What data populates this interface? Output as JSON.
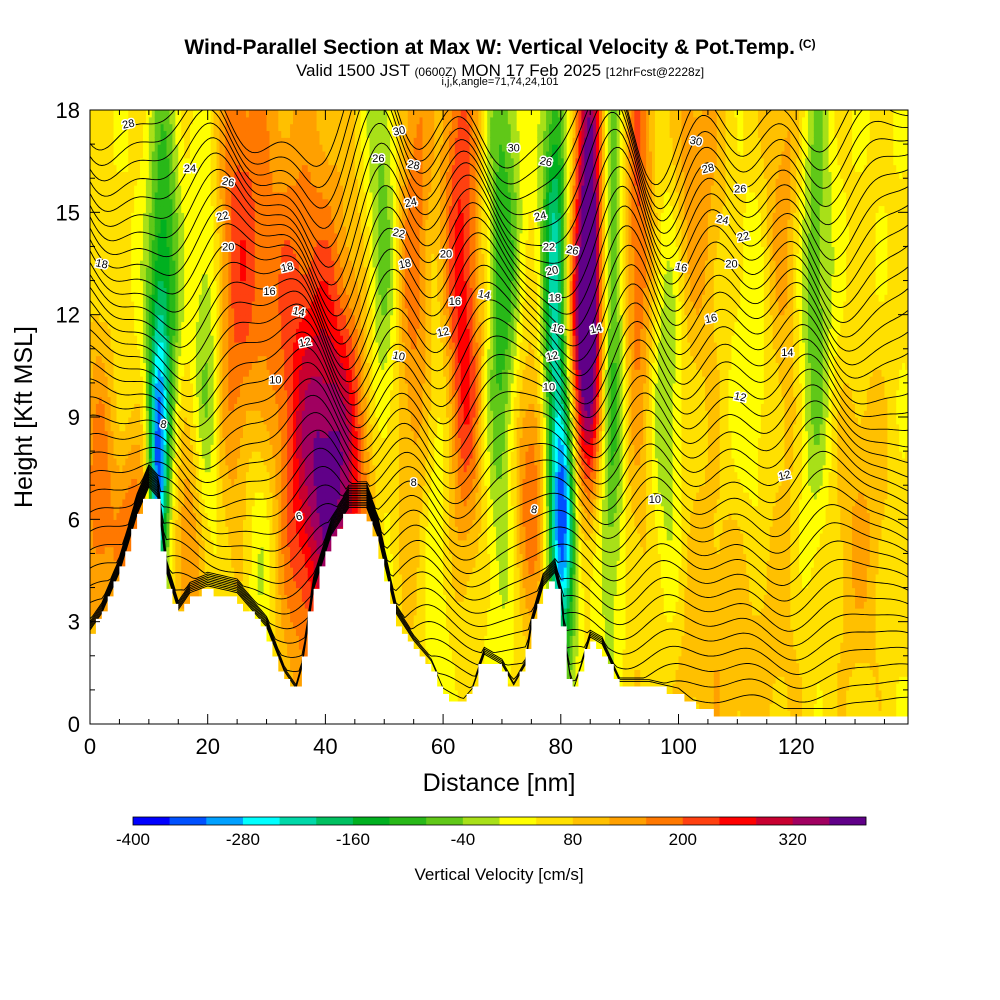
{
  "title": {
    "main": "Wind-Parallel Section at Max W: Vertical Velocity & Pot.Temp.",
    "copyright": "(C)",
    "valid_prefix": "Valid 1500 JST",
    "valid_utc": "(0600Z)",
    "valid_date": "MON 17 Feb 2025",
    "forecast": "[12hrFcst@2228z]",
    "indices": "i,j,k,angle=71,74,24,101"
  },
  "chart_data": {
    "type": "heatmap",
    "xlabel": "Distance [nm]",
    "ylabel": "Height [Kft MSL]",
    "xlim": [
      0,
      139
    ],
    "ylim": [
      0,
      18
    ],
    "x_ticks": [
      0,
      20,
      40,
      60,
      80,
      100,
      120
    ],
    "y_ticks": [
      0,
      3,
      6,
      9,
      12,
      15,
      18
    ],
    "colorbar": {
      "title": "Vertical Velocity [cm/s]",
      "tick_labels": [
        "-400",
        "-280",
        "-160",
        "-40",
        "80",
        "200",
        "320"
      ],
      "tick_values": [
        -400,
        -280,
        -160,
        -40,
        80,
        200,
        320
      ],
      "levels": [
        -400,
        -360,
        -320,
        -280,
        -240,
        -200,
        -160,
        -120,
        -80,
        -40,
        0,
        40,
        80,
        120,
        160,
        200,
        240,
        280,
        320,
        360
      ],
      "colors": [
        "#0000ff",
        "#0050ff",
        "#00a0ff",
        "#00ffff",
        "#00d8a8",
        "#00c060",
        "#00b020",
        "#28b818",
        "#60c818",
        "#a8e018",
        "#ffff00",
        "#ffe000",
        "#ffc000",
        "#ffa000",
        "#ff7800",
        "#ff4010",
        "#ff0000",
        "#c80030",
        "#a00060",
        "#600088"
      ]
    },
    "terrain_profile_kft": {
      "x": [
        0,
        2,
        5,
        8,
        10,
        11.5,
        13,
        15,
        17,
        20,
        25,
        30,
        33,
        35,
        36,
        38,
        41,
        44,
        47,
        49,
        52,
        55,
        58,
        60,
        62,
        63,
        65,
        67,
        70,
        72,
        74,
        75,
        77,
        79,
        80,
        81,
        82,
        83,
        85,
        87,
        90,
        95,
        100,
        104,
        108,
        115,
        125,
        139
      ],
      "y": [
        2.6,
        3.1,
        4.3,
        6.0,
        6.8,
        6.5,
        4.3,
        3.2,
        3.7,
        3.9,
        3.7,
        2.7,
        1.4,
        0.9,
        1.5,
        3.8,
        5.4,
        6.2,
        6.2,
        5.3,
        3.1,
        2.3,
        1.7,
        0.9,
        0.7,
        0.5,
        0.9,
        1.9,
        1.6,
        1.0,
        1.6,
        2.7,
        3.9,
        4.3,
        3.6,
        1.9,
        0.8,
        1.3,
        2.4,
        2.2,
        1.1,
        1.1,
        0.9,
        0.35,
        0.3,
        0.3,
        0.3,
        0.3
      ]
    },
    "updrafts_cm_s": [
      {
        "x": 1.5,
        "x_width": 3,
        "z": 6.5,
        "z_width": 5,
        "w": 140
      },
      {
        "x": 8,
        "x_width": 3.5,
        "z": 5.5,
        "z_width": 3,
        "w": 160
      },
      {
        "x": 17,
        "x_width": 4,
        "z": 5,
        "z_width": 4,
        "w": 130
      },
      {
        "x": 25,
        "x_width": 5,
        "z": 14,
        "z_width": 8,
        "w": 150
      },
      {
        "x": 36,
        "x_width": 9,
        "z": 10,
        "z_width": 9,
        "w": 170
      },
      {
        "x": 41.5,
        "x_width": 6,
        "z": 7,
        "z_width": 5,
        "w": 230
      },
      {
        "x": 56,
        "x_width": 5,
        "z": 14,
        "z_width": 9,
        "w": 170
      },
      {
        "x": 62.5,
        "x_width": 4,
        "z": 15,
        "z_width": 7,
        "w": 180
      },
      {
        "x": 64,
        "x_width": 3,
        "z": 9,
        "z_width": 5,
        "w": 110
      },
      {
        "x": 75,
        "x_width": 3.5,
        "z": 7,
        "z_width": 4,
        "w": 160
      },
      {
        "x": 85,
        "x_width": 2.5,
        "z": 15.5,
        "z_width": 6,
        "w": 360
      },
      {
        "x": 84,
        "x_width": 3.5,
        "z": 10.5,
        "z_width": 4,
        "w": 250
      },
      {
        "x": 93,
        "x_width": 3,
        "z": 15,
        "z_width": 8,
        "w": 160
      },
      {
        "x": 102,
        "x_width": 6,
        "z": 16,
        "z_width": 6,
        "w": 110
      },
      {
        "x": 108,
        "x_width": 14,
        "z": 2.5,
        "z_width": 5,
        "w": 70
      },
      {
        "x": 118,
        "x_width": 4,
        "z": 15,
        "z_width": 8,
        "w": 100
      },
      {
        "x": 131,
        "x_width": 5,
        "z": 6,
        "z_width": 5,
        "w": 75
      }
    ],
    "downdrafts_cm_s": [
      {
        "x": 11.5,
        "x_width": 1.6,
        "z": 6.5,
        "z_width": 4.5,
        "w": -330
      },
      {
        "x": 12.5,
        "x_width": 2.6,
        "z": 12,
        "z_width": 7,
        "w": -200
      },
      {
        "x": 20,
        "x_width": 2.5,
        "z": 10,
        "z_width": 8,
        "w": -140
      },
      {
        "x": 29,
        "x_width": 3.5,
        "z": 6,
        "z_width": 5,
        "w": -130
      },
      {
        "x": 50,
        "x_width": 3,
        "z": 14,
        "z_width": 8,
        "w": -150
      },
      {
        "x": 59,
        "x_width": 3,
        "z": 12,
        "z_width": 9,
        "w": -160
      },
      {
        "x": 70,
        "x_width": 3,
        "z": 13,
        "z_width": 9,
        "w": -160
      },
      {
        "x": 80.5,
        "x_width": 2.2,
        "z": 6,
        "z_width": 4,
        "w": -360
      },
      {
        "x": 79,
        "x_width": 2.2,
        "z": 12.5,
        "z_width": 7,
        "w": -280
      },
      {
        "x": 88.5,
        "x_width": 2.5,
        "z": 12,
        "z_width": 9,
        "w": -200
      },
      {
        "x": 98,
        "x_width": 3,
        "z": 11,
        "z_width": 8,
        "w": -120
      },
      {
        "x": 123,
        "x_width": 3,
        "z": 13,
        "z_width": 8,
        "w": -130
      },
      {
        "x": 113,
        "x_width": 4,
        "z": 10,
        "z_width": 6,
        "w": -60
      }
    ],
    "isentrope_labels": [
      {
        "text": "28",
        "x": 6.5,
        "z": 17.6
      },
      {
        "text": "24",
        "x": 17,
        "z": 16.3
      },
      {
        "text": "26",
        "x": 23.5,
        "z": 15.9
      },
      {
        "text": "22",
        "x": 22.5,
        "z": 14.9
      },
      {
        "text": "20",
        "x": 23.5,
        "z": 14.0
      },
      {
        "text": "18",
        "x": 2,
        "z": 13.5
      },
      {
        "text": "18",
        "x": 33.5,
        "z": 13.4
      },
      {
        "text": "16",
        "x": 30.5,
        "z": 12.7
      },
      {
        "text": "14",
        "x": 35.5,
        "z": 12.1
      },
      {
        "text": "12",
        "x": 36.5,
        "z": 11.2
      },
      {
        "text": "10",
        "x": 31.5,
        "z": 10.1
      },
      {
        "text": "8",
        "x": 12.5,
        "z": 8.8
      },
      {
        "text": "6",
        "x": 35.5,
        "z": 6.1
      },
      {
        "text": "8",
        "x": 55,
        "z": 7.1
      },
      {
        "text": "10",
        "x": 52.5,
        "z": 10.8
      },
      {
        "text": "12",
        "x": 60,
        "z": 11.5
      },
      {
        "text": "16",
        "x": 62,
        "z": 12.4
      },
      {
        "text": "14",
        "x": 67,
        "z": 12.6
      },
      {
        "text": "18",
        "x": 53.5,
        "z": 13.5
      },
      {
        "text": "20",
        "x": 60.5,
        "z": 13.8
      },
      {
        "text": "22",
        "x": 52.5,
        "z": 14.4
      },
      {
        "text": "24",
        "x": 54.5,
        "z": 15.3
      },
      {
        "text": "26",
        "x": 49,
        "z": 16.6
      },
      {
        "text": "28",
        "x": 55,
        "z": 16.4
      },
      {
        "text": "30",
        "x": 52.5,
        "z": 17.4
      },
      {
        "text": "30",
        "x": 72,
        "z": 16.9
      },
      {
        "text": "26",
        "x": 77.5,
        "z": 16.5
      },
      {
        "text": "24",
        "x": 76.5,
        "z": 14.9
      },
      {
        "text": "22",
        "x": 78,
        "z": 14.0
      },
      {
        "text": "26",
        "x": 82,
        "z": 13.9
      },
      {
        "text": "20",
        "x": 78.5,
        "z": 13.3
      },
      {
        "text": "18",
        "x": 79,
        "z": 12.5
      },
      {
        "text": "16",
        "x": 79.5,
        "z": 11.6
      },
      {
        "text": "12",
        "x": 78.5,
        "z": 10.8
      },
      {
        "text": "10",
        "x": 78,
        "z": 9.9
      },
      {
        "text": "8",
        "x": 75.5,
        "z": 6.3
      },
      {
        "text": "14",
        "x": 86,
        "z": 11.6
      },
      {
        "text": "10",
        "x": 96,
        "z": 6.6
      },
      {
        "text": "30",
        "x": 103,
        "z": 17.1
      },
      {
        "text": "28",
        "x": 105,
        "z": 16.3
      },
      {
        "text": "26",
        "x": 110.5,
        "z": 15.7
      },
      {
        "text": "24",
        "x": 107.5,
        "z": 14.8
      },
      {
        "text": "22",
        "x": 111,
        "z": 14.3
      },
      {
        "text": "20",
        "x": 109,
        "z": 13.5
      },
      {
        "text": "16",
        "x": 100.5,
        "z": 13.4
      },
      {
        "text": "16",
        "x": 105.5,
        "z": 11.9
      },
      {
        "text": "14",
        "x": 118.5,
        "z": 10.9
      },
      {
        "text": "12",
        "x": 110.5,
        "z": 9.6
      },
      {
        "text": "12",
        "x": 118,
        "z": 7.3
      }
    ]
  }
}
